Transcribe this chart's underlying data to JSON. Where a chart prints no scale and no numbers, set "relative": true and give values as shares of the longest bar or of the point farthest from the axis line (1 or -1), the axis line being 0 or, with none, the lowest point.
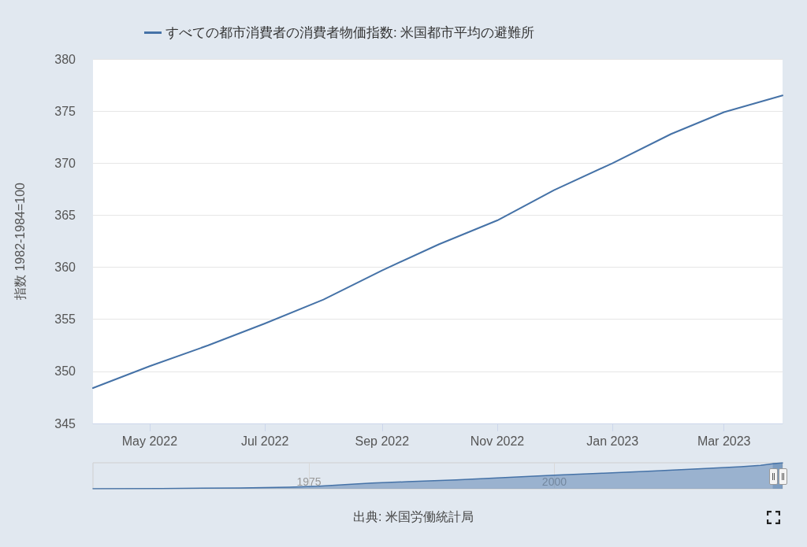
{
  "chart_data": [
    {
      "type": "line",
      "ylabel": "指数 1982-1984=100",
      "annotations": [
        "出典: 米国労働統計局"
      ],
      "x": [
        "2022-04",
        "2022-05",
        "2022-06",
        "2022-07",
        "2022-08",
        "2022-09",
        "2022-10",
        "2022-11",
        "2022-12",
        "2023-01",
        "2023-02",
        "2023-03",
        "2023-04"
      ],
      "series": [
        {
          "name": "すべての都市消費者の消費者物価指数: 米国都市平均の避難所",
          "color": "#4572a7",
          "values": [
            348.4,
            350.5,
            352.5,
            354.6,
            356.9,
            359.7,
            362.2,
            364.5,
            367.4,
            370.0,
            372.8,
            374.9,
            376.5
          ]
        }
      ],
      "xlim": [
        "2022-04",
        "2023-04"
      ],
      "xticks": [
        {
          "value": "2022-05",
          "label": "May 2022"
        },
        {
          "value": "2022-07",
          "label": "Jul 2022"
        },
        {
          "value": "2022-09",
          "label": "Sep 2022"
        },
        {
          "value": "2022-11",
          "label": "Nov 2022"
        },
        {
          "value": "2023-01",
          "label": "Jan 2023"
        },
        {
          "value": "2023-03",
          "label": "Mar 2023"
        }
      ],
      "ylim": [
        345,
        380
      ],
      "yticks": [
        345,
        350,
        355,
        360,
        365,
        370,
        375,
        380
      ],
      "grid": "y",
      "legend": "top left",
      "marker": "none"
    },
    {
      "type": "area",
      "relative": true,
      "x": [
        "1953-01",
        "1960-01",
        "1968-01",
        "1973-01",
        "1976-01",
        "1979-01",
        "1981-06",
        "1985-01",
        "1990-01",
        "1995-01",
        "2000-01",
        "2005-01",
        "2010-01",
        "2015-01",
        "2019-01",
        "2021-01",
        "2022-04",
        "2023-04"
      ],
      "series": [
        {
          "color": "#4572a7",
          "values": [
            0,
            0.01,
            0.03,
            0.06,
            0.1,
            0.17,
            0.22,
            0.27,
            0.34,
            0.43,
            0.52,
            0.6,
            0.68,
            0.77,
            0.85,
            0.9,
            0.96,
            1
          ]
        }
      ],
      "xlim": [
        "1953-01",
        "2023-04"
      ],
      "xticks": [
        {
          "value": "1975",
          "label": "1975"
        },
        {
          "value": "2000",
          "label": "2000"
        }
      ],
      "grid": "x",
      "bands": [
        {
          "axis": "x",
          "from": "2022-04",
          "to": "2023-04",
          "color": "#4572a7"
        }
      ]
    }
  ]
}
